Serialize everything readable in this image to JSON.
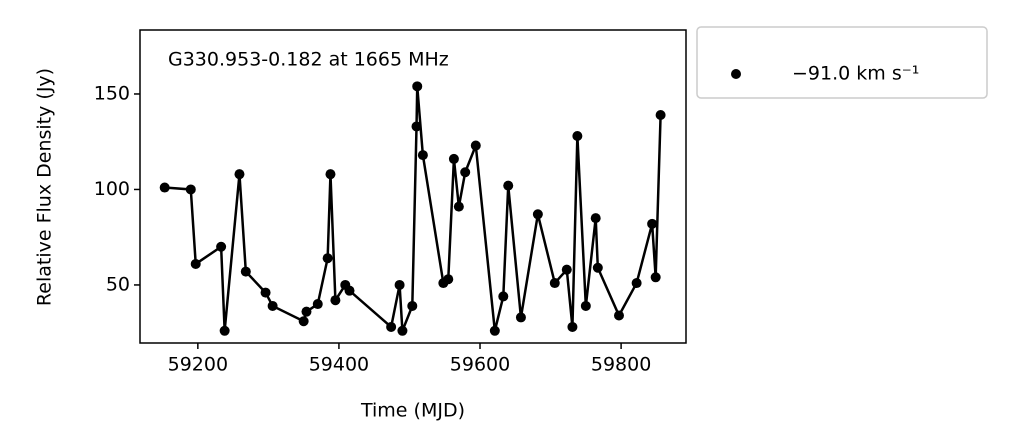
{
  "chart_data": {
    "type": "line",
    "annotation": "G330.953-0.182 at 1665 MHz",
    "x_label": "Time (MJD)",
    "y_label": "Relative Flux Density (Jy)",
    "xlim": [
      59118,
      59892
    ],
    "ylim": [
      19.6,
      183.5
    ],
    "xticks": [
      59200,
      59400,
      59600,
      59800
    ],
    "yticks": [
      50,
      100,
      150
    ],
    "legend_position": "outside-upper-right",
    "series": [
      {
        "name": "−91.0 km s⁻¹",
        "color": "#000000",
        "x": [
          59153,
          59190,
          59197,
          59233,
          59238,
          59259,
          59268,
          59296,
          59306,
          59350,
          59354,
          59370,
          59384,
          59388,
          59395,
          59409,
          59415,
          59474,
          59486,
          59490,
          59504,
          59510,
          59511,
          59519,
          59548,
          59555,
          59563,
          59570,
          59579,
          59594,
          59621,
          59633,
          59640,
          59658,
          59682,
          59706,
          59723,
          59731,
          59738,
          59750,
          59764,
          59767,
          59797,
          59822,
          59844,
          59849,
          59856
        ],
        "values": [
          101,
          100,
          61,
          70,
          26,
          108,
          57,
          46,
          39,
          31,
          36,
          40,
          64,
          108,
          42,
          50,
          47,
          28,
          50,
          26,
          39,
          133,
          154,
          118,
          51,
          53,
          116,
          91,
          109,
          123,
          26,
          44,
          102,
          33,
          87,
          51,
          58,
          28,
          128,
          39,
          85,
          59,
          34,
          51,
          82,
          54,
          139
        ]
      }
    ]
  }
}
